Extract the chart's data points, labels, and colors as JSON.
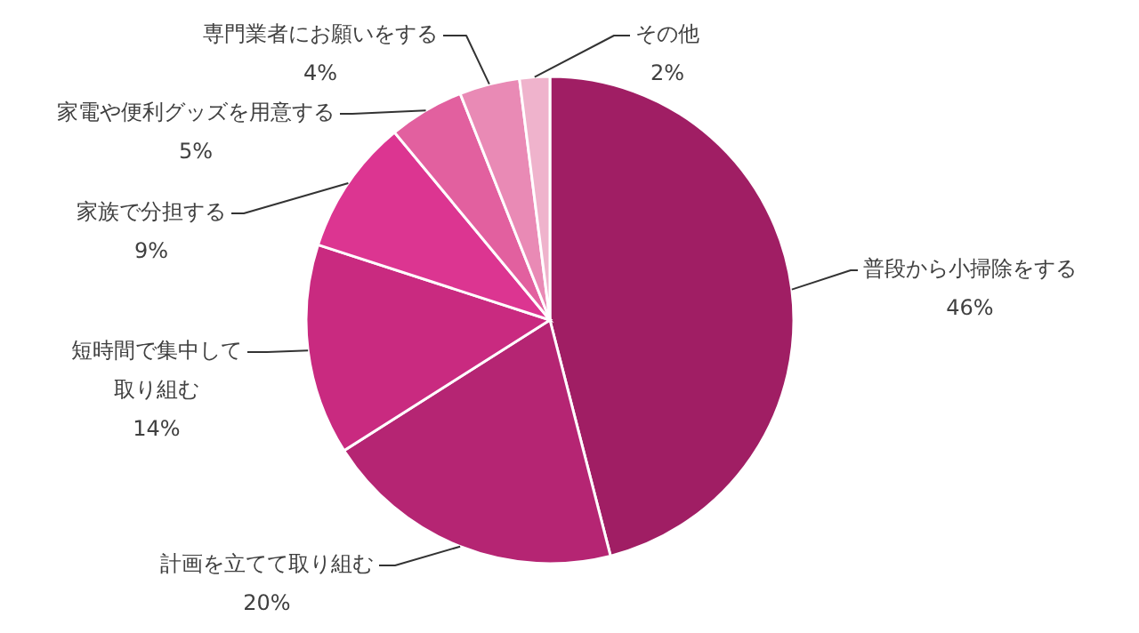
{
  "chart_data": {
    "type": "pie",
    "categories": [
      "普段から小掃除をする",
      "計画を立てて取り組む",
      "短時間で集中して取り組む",
      "家族で分担する",
      "家電や便利グッズを用意する",
      "専門業者にお願いをする",
      "その他"
    ],
    "values": [
      46,
      20,
      14,
      9,
      5,
      4,
      2
    ],
    "value_labels": [
      "46%",
      "20%",
      "14%",
      "9%",
      "5%",
      "4%",
      "2%"
    ],
    "colors": [
      "#a01e64",
      "#b52573",
      "#c92a80",
      "#dc3591",
      "#e2609f",
      "#e98ab5",
      "#efb3cc"
    ]
  }
}
